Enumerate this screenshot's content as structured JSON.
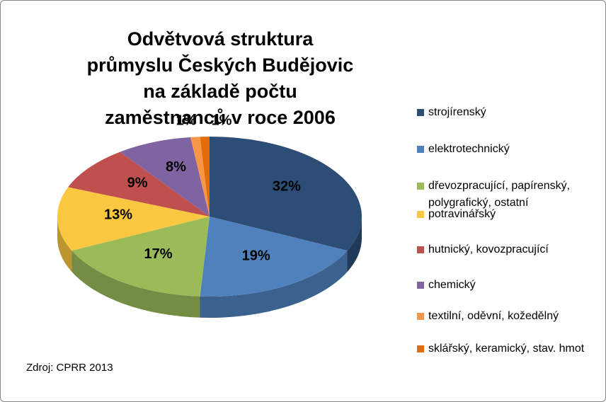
{
  "chart_data": {
    "type": "pie",
    "title": "Odvětvová struktura průmyslu Českých Budějovic na základě počtu zaměstnanců v roce 2006",
    "categories": [
      "strojírenský",
      "elektrotechnický",
      "dřevozpracující, papírenský, polygrafický, ostatní",
      "potravinářský",
      "hutnický, kovozpracující",
      "chemický",
      "textilní, oděvní, kožedělný",
      "sklářský, keramický, stav. hmot"
    ],
    "values": [
      32,
      19,
      17,
      13,
      9,
      8,
      1,
      1
    ],
    "value_labels": [
      "32%",
      "19%",
      "17%",
      "13%",
      "9%",
      "8%",
      "1%",
      "1%"
    ],
    "colors": [
      "#2c4d75",
      "#4f81bd",
      "#9bbb59",
      "#f9c840",
      "#c0504d",
      "#8064a2",
      "#f79646",
      "#e26b0a"
    ],
    "legend": "right",
    "annotation": "Zdroj: CPRR 2013"
  }
}
